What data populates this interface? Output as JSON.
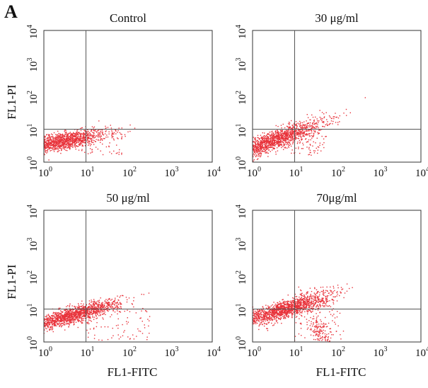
{
  "figure": {
    "panel_label": "A"
  },
  "colors": {
    "dots": "#e8333b",
    "frame": "#333333",
    "gate": "#555555",
    "text": "#111111"
  },
  "chart_data": [
    {
      "type": "scatter",
      "title": "Control",
      "xlabel": "",
      "ylabel": "FL1-PI",
      "x_scale": "log",
      "y_scale": "log",
      "xlim": [
        1,
        10000
      ],
      "ylim": [
        1,
        10000
      ],
      "x_ticks": [
        "10^0",
        "10^1",
        "10^2",
        "10^3",
        "10^4"
      ],
      "y_ticks": [
        "10^0",
        "10^1",
        "10^2",
        "10^3",
        "10^4"
      ],
      "gate": {
        "x": 10,
        "y": 10
      },
      "populations": [
        {
          "center": [
            2.5,
            4.2
          ],
          "spread_x_decades": 0.55,
          "spread_y_decades": 0.13,
          "tilt": 0.2,
          "count": 1400
        }
      ],
      "sparse_events": {
        "x_range": [
          8,
          80
        ],
        "y_range": [
          1.6,
          11
        ],
        "count": 60
      },
      "quadrant_percentages": []
    },
    {
      "type": "scatter",
      "title": "30 μg/ml",
      "xlabel": "",
      "ylabel": "",
      "x_scale": "log",
      "y_scale": "log",
      "xlim": [
        1,
        10000
      ],
      "ylim": [
        1,
        10000
      ],
      "x_ticks": [
        "10^0",
        "10^1",
        "10^2",
        "10^3",
        "10^4"
      ],
      "y_ticks": [
        "10^0",
        "10^1",
        "10^2",
        "10^3",
        "10^4"
      ],
      "gate": {
        "x": 10,
        "y": 10
      },
      "populations": [
        {
          "center": [
            3.2,
            4.5
          ],
          "spread_x_decades": 0.6,
          "spread_y_decades": 0.15,
          "tilt": 0.45,
          "count": 1500
        }
      ],
      "sparse_events": {
        "x_range": [
          8,
          60
        ],
        "y_range": [
          1.6,
          13
        ],
        "count": 70
      },
      "quadrant_percentages": []
    },
    {
      "type": "scatter",
      "title": "50 μg/ml",
      "xlabel": "FL1-FITC",
      "ylabel": "FL1-PI",
      "x_scale": "log",
      "y_scale": "log",
      "xlim": [
        1,
        10000
      ],
      "ylim": [
        1,
        10000
      ],
      "x_ticks": [
        "10^0",
        "10^1",
        "10^2",
        "10^3",
        "10^4"
      ],
      "y_ticks": [
        "10^0",
        "10^1",
        "10^2",
        "10^3",
        "10^4"
      ],
      "gate": {
        "x": 10,
        "y": 10
      },
      "populations": [
        {
          "center": [
            5,
            6.5
          ],
          "spread_x_decades": 0.55,
          "spread_y_decades": 0.12,
          "tilt": 0.35,
          "count": 1500
        }
      ],
      "sparse_events": {
        "x_range": [
          10,
          400
        ],
        "y_range": [
          1.1,
          12
        ],
        "count": 80
      },
      "quadrant_percentages": []
    },
    {
      "type": "scatter",
      "title": "70μg/ml",
      "xlabel": "FL1-FITC",
      "ylabel": "",
      "x_scale": "log",
      "y_scale": "log",
      "xlim": [
        1,
        10000
      ],
      "ylim": [
        1,
        10000
      ],
      "x_ticks": [
        "10^0",
        "10^1",
        "10^2",
        "10^3",
        "10^4"
      ],
      "y_ticks": [
        "10^0",
        "10^1",
        "10^2",
        "10^3",
        "10^4"
      ],
      "gate": {
        "x": 10,
        "y": 10
      },
      "populations": [
        {
          "center": [
            5.5,
            9.5
          ],
          "spread_x_decades": 0.55,
          "spread_y_decades": 0.14,
          "tilt": 0.35,
          "count": 1500
        },
        {
          "center": [
            40,
            2.2
          ],
          "spread_x_decades": 0.15,
          "spread_y_decades": 0.2,
          "tilt": -0.6,
          "count": 130
        }
      ],
      "sparse_events": {
        "x_range": [
          10,
          150
        ],
        "y_range": [
          1.1,
          50
        ],
        "count": 110
      },
      "quadrant_percentages": []
    }
  ]
}
